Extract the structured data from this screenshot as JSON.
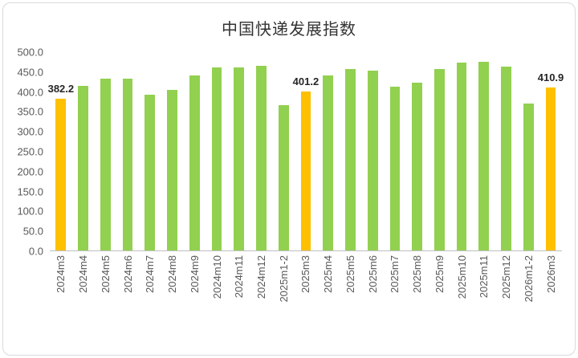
{
  "chart_data": {
    "type": "bar",
    "title": "中国快递发展指数",
    "categories": [
      "2024m3",
      "2024m4",
      "2024m5",
      "2024m6",
      "2024m7",
      "2024m8",
      "2024m9",
      "2024m10",
      "2024m11",
      "2024m12",
      "2025m1-2",
      "2025m3",
      "2025m4",
      "2025m5",
      "2025m6",
      "2025m7",
      "2025m8",
      "2025m9",
      "2025m10",
      "2025m11",
      "2025m12",
      "2026m1-2",
      "2026m3"
    ],
    "values": [
      382.2,
      415,
      434,
      434,
      392,
      405,
      442,
      461,
      461,
      466,
      366,
      401.2,
      442,
      457,
      454,
      412,
      424,
      457,
      474,
      476,
      464,
      371,
      410.9
    ],
    "highlighted_indices": [
      0,
      11,
      22
    ],
    "data_labels": {
      "0": "382.2",
      "11": "401.2",
      "22": "410.9"
    },
    "bar_color": "#92D050",
    "highlight_color": "#FFC000",
    "ylim": [
      0,
      500
    ],
    "ytick_step": 50,
    "ytick_format_decimals": 1,
    "grid": false,
    "legend": "none"
  }
}
